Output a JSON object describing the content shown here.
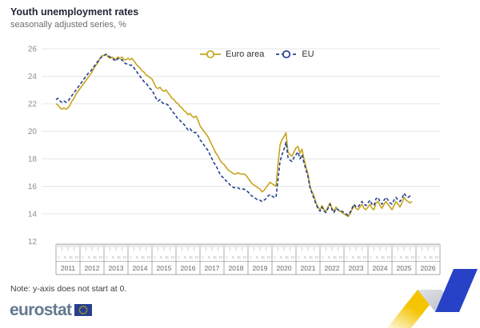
{
  "header": {
    "title": "Youth unemployment rates",
    "subtitle": "seasonally adjusted series, %"
  },
  "note": "Note: y-axis does not start at 0.",
  "logo": {
    "wordmark": "eurostat"
  },
  "colors": {
    "euro_area_line": "#C7A41E",
    "eu_line": "#27418F",
    "gridline": "#e7e7e7",
    "axis_text": "#8c8c8c",
    "year_text": "#666666",
    "quarter_text": "#9a9a9a",
    "axis_border": "#a8a8a8",
    "deco_yellow": "#F5C400",
    "deco_gray": "#c9cdd3",
    "deco_blue": "#2742C6",
    "flag_blue": "#27408F",
    "flag_stars": "#F5C400"
  },
  "chart_data": {
    "type": "line",
    "title": "Youth unemployment rates",
    "subtitle": "seasonally adjusted series, %",
    "frequency": "monthly",
    "x_start": "2011-01",
    "x_end": "2025-11",
    "ylabel": "%",
    "ylim": [
      12,
      26
    ],
    "yticks": [
      12,
      14,
      16,
      18,
      20,
      22,
      24,
      26
    ],
    "grid": true,
    "legend_position": "top-center",
    "x_years": [
      2011,
      2012,
      2013,
      2014,
      2015,
      2016,
      2017,
      2018,
      2019,
      2020,
      2021,
      2022,
      2023,
      2024,
      2025,
      2026
    ],
    "quarter_labels": [
      "I",
      "II",
      "III",
      "IV"
    ],
    "series": [
      {
        "name": "Euro area",
        "style": "solid",
        "values": [
          22.0,
          21.9,
          21.7,
          21.6,
          21.7,
          21.6,
          21.7,
          21.9,
          22.2,
          22.4,
          22.7,
          22.9,
          23.1,
          23.3,
          23.5,
          23.7,
          23.9,
          24.1,
          24.3,
          24.6,
          24.8,
          25.0,
          25.3,
          25.5,
          25.5,
          25.6,
          25.4,
          25.3,
          25.4,
          25.3,
          25.2,
          25.4,
          25.3,
          25.4,
          25.2,
          25.2,
          25.3,
          25.2,
          25.3,
          25.1,
          24.9,
          24.7,
          24.6,
          24.4,
          24.3,
          24.1,
          24.0,
          23.9,
          23.8,
          23.5,
          23.2,
          23.1,
          23.2,
          23.0,
          22.9,
          23.0,
          22.8,
          22.6,
          22.4,
          22.3,
          22.1,
          22.0,
          21.8,
          21.7,
          21.5,
          21.4,
          21.2,
          21.3,
          21.1,
          21.0,
          21.1,
          20.8,
          20.4,
          20.2,
          20.0,
          19.8,
          19.6,
          19.3,
          19.0,
          18.7,
          18.4,
          18.2,
          17.9,
          17.7,
          17.6,
          17.4,
          17.2,
          17.1,
          17.0,
          16.9,
          16.9,
          17.0,
          16.9,
          16.9,
          16.9,
          16.8,
          16.6,
          16.4,
          16.2,
          16.1,
          16.0,
          15.9,
          15.8,
          15.6,
          15.7,
          15.9,
          16.1,
          16.3,
          16.2,
          16.1,
          16.0,
          17.6,
          19.0,
          19.4,
          19.6,
          19.9,
          18.5,
          18.3,
          18.2,
          18.5,
          18.8,
          18.9,
          18.4,
          18.7,
          18.0,
          17.4,
          16.9,
          16.0,
          15.6,
          15.3,
          14.8,
          14.5,
          14.3,
          14.6,
          14.3,
          14.2,
          14.5,
          14.8,
          14.4,
          14.2,
          14.5,
          14.3,
          14.2,
          14.1,
          14.0,
          13.9,
          13.8,
          14.0,
          14.3,
          14.6,
          14.4,
          14.3,
          14.5,
          14.7,
          14.4,
          14.3,
          14.5,
          14.7,
          14.4,
          14.3,
          14.8,
          14.9,
          14.6,
          14.4,
          14.7,
          14.9,
          14.7,
          14.5,
          14.3,
          14.6,
          14.9,
          14.7,
          14.5,
          14.8,
          15.2,
          15.0,
          14.9,
          14.8,
          14.9
        ]
      },
      {
        "name": "EU",
        "style": "dashed",
        "values": [
          22.3,
          22.4,
          22.2,
          22.1,
          22.2,
          22.1,
          22.2,
          22.4,
          22.6,
          22.8,
          23.0,
          23.2,
          23.4,
          23.6,
          23.8,
          24.0,
          24.2,
          24.3,
          24.5,
          24.7,
          24.9,
          25.1,
          25.3,
          25.4,
          25.5,
          25.6,
          25.5,
          25.4,
          25.3,
          25.2,
          25.1,
          25.3,
          25.2,
          25.2,
          25.0,
          24.9,
          24.9,
          24.8,
          24.8,
          24.6,
          24.4,
          24.2,
          24.0,
          23.8,
          23.6,
          23.5,
          23.3,
          23.1,
          23.0,
          22.7,
          22.4,
          22.2,
          22.3,
          22.1,
          22.0,
          22.0,
          21.9,
          21.7,
          21.5,
          21.3,
          21.1,
          20.9,
          20.8,
          20.6,
          20.5,
          20.3,
          20.1,
          20.2,
          20.0,
          19.9,
          19.9,
          19.7,
          19.4,
          19.2,
          19.0,
          18.8,
          18.6,
          18.3,
          18.0,
          17.7,
          17.5,
          17.2,
          16.9,
          16.7,
          16.6,
          16.4,
          16.3,
          16.1,
          16.0,
          15.9,
          15.9,
          15.9,
          15.8,
          15.8,
          15.8,
          15.7,
          15.6,
          15.4,
          15.3,
          15.2,
          15.1,
          15.0,
          15.0,
          14.9,
          15.0,
          15.1,
          15.3,
          15.4,
          15.3,
          15.2,
          15.2,
          16.5,
          17.8,
          18.3,
          18.7,
          19.2,
          18.1,
          17.9,
          17.8,
          18.1,
          18.3,
          18.5,
          18.0,
          18.3,
          17.7,
          17.2,
          16.7,
          15.9,
          15.5,
          15.1,
          14.7,
          14.4,
          14.2,
          14.5,
          14.2,
          14.1,
          14.4,
          14.7,
          14.3,
          14.1,
          14.4,
          14.3,
          14.2,
          14.2,
          14.1,
          14.0,
          13.9,
          14.1,
          14.4,
          14.7,
          14.5,
          14.5,
          14.7,
          14.9,
          14.7,
          14.6,
          14.8,
          15.0,
          14.7,
          14.6,
          15.1,
          15.2,
          14.9,
          14.7,
          15.0,
          15.2,
          15.0,
          14.8,
          14.7,
          15.0,
          15.2,
          15.0,
          14.9,
          15.1,
          15.5,
          15.3,
          15.2,
          15.3,
          15.4
        ]
      }
    ]
  }
}
